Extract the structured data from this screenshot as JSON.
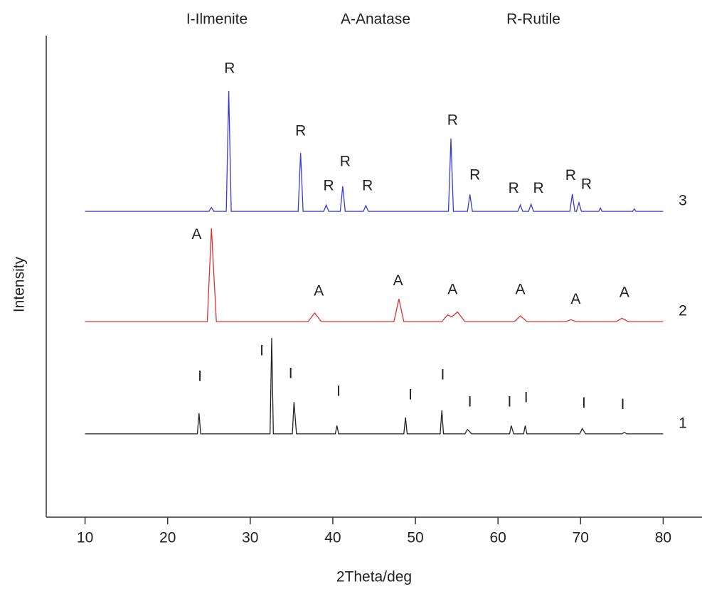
{
  "chart_data": {
    "type": "line",
    "legend_texts": [
      "I-Ilmenite",
      "A-Anatase",
      "R-Rutile"
    ],
    "xlabel": "2Theta/deg",
    "ylabel": "Intensity",
    "xlim": [
      5.3,
      84.7
    ],
    "ylim": [
      0,
      100
    ],
    "xticks": [
      10,
      20,
      30,
      40,
      50,
      60,
      70,
      80
    ],
    "series": [
      {
        "name": "3",
        "color": "#3a3ad8",
        "x": [
          10,
          25.0,
          25.3,
          25.6,
          27.1,
          27.4,
          27.7,
          35.8,
          36.1,
          36.4,
          38.9,
          39.2,
          39.5,
          40.9,
          41.2,
          41.5,
          43.7,
          44.0,
          44.3,
          54.0,
          54.3,
          54.6,
          56.3,
          56.6,
          56.9,
          62.4,
          62.7,
          63.0,
          63.7,
          64.0,
          64.3,
          68.7,
          69.0,
          69.3,
          69.5,
          69.8,
          70.1,
          72.2,
          72.4,
          72.6,
          76.3,
          76.5,
          76.7,
          80
        ],
        "values": [
          63.5,
          63.5,
          64.3,
          63.5,
          63.5,
          88.5,
          63.5,
          63.5,
          75.6,
          63.5,
          63.5,
          64.8,
          63.5,
          63.5,
          68.7,
          63.5,
          63.5,
          64.7,
          63.5,
          63.5,
          78.6,
          63.5,
          63.5,
          67.0,
          63.5,
          63.5,
          64.8,
          63.5,
          63.5,
          65.0,
          63.5,
          63.5,
          67.1,
          63.5,
          63.5,
          65.3,
          63.5,
          63.5,
          64.2,
          63.5,
          63.5,
          64.0,
          63.5,
          63.5
        ]
      },
      {
        "name": "2",
        "color": "#e03030",
        "x": [
          10,
          24.8,
          25.3,
          25.9,
          37.0,
          37.8,
          38.6,
          47.4,
          48.0,
          48.6,
          53.2,
          53.9,
          54.4,
          55.1,
          56.0,
          62.0,
          62.7,
          63.5,
          68.2,
          68.8,
          69.5,
          74.3,
          75.0,
          75.8,
          80
        ],
        "values": [
          40.6,
          40.6,
          60.0,
          40.6,
          40.6,
          42.4,
          40.6,
          40.6,
          45.3,
          40.6,
          40.6,
          42.0,
          41.6,
          42.6,
          40.6,
          40.6,
          41.8,
          40.6,
          40.6,
          41.0,
          40.6,
          40.6,
          41.3,
          40.6,
          40.6
        ]
      },
      {
        "name": "1",
        "color": "#222222",
        "x": [
          10,
          23.6,
          23.8,
          24.0,
          32.4,
          32.6,
          32.8,
          35.1,
          35.3,
          35.6,
          40.3,
          40.5,
          40.7,
          48.6,
          48.8,
          49.0,
          53.0,
          53.2,
          53.4,
          56.0,
          56.3,
          56.8,
          61.4,
          61.6,
          61.9,
          63.1,
          63.3,
          63.5,
          69.9,
          70.2,
          70.6,
          75.0,
          75.3,
          75.6,
          80
        ],
        "values": [
          17.3,
          17.3,
          21.6,
          17.3,
          17.3,
          37.2,
          17.3,
          17.3,
          23.9,
          17.3,
          17.3,
          19.0,
          17.3,
          17.3,
          20.7,
          17.3,
          17.3,
          22.2,
          17.3,
          17.3,
          18.2,
          17.3,
          17.3,
          19.0,
          17.3,
          17.3,
          19.0,
          17.3,
          17.3,
          18.4,
          17.3,
          17.3,
          17.6,
          17.3,
          17.3
        ]
      }
    ],
    "annotations": [
      {
        "text": "R",
        "x": 27.5,
        "y": 93.1
      },
      {
        "text": "R",
        "x": 36.1,
        "y": 80.1
      },
      {
        "text": "R",
        "x": 39.5,
        "y": 68.7
      },
      {
        "text": "R",
        "x": 41.5,
        "y": 73.7
      },
      {
        "text": "R",
        "x": 44.2,
        "y": 68.7
      },
      {
        "text": "R",
        "x": 54.5,
        "y": 82.3
      },
      {
        "text": "R",
        "x": 57.2,
        "y": 70.9
      },
      {
        "text": "R",
        "x": 61.9,
        "y": 68.2
      },
      {
        "text": "R",
        "x": 64.9,
        "y": 68.2
      },
      {
        "text": "R",
        "x": 68.8,
        "y": 70.8
      },
      {
        "text": "R",
        "x": 70.7,
        "y": 69.0
      },
      {
        "text": "A",
        "x": 23.5,
        "y": 58.6
      },
      {
        "text": "A",
        "x": 38.3,
        "y": 46.8
      },
      {
        "text": "A",
        "x": 47.9,
        "y": 49.0
      },
      {
        "text": "A",
        "x": 54.5,
        "y": 47.1
      },
      {
        "text": "A",
        "x": 62.7,
        "y": 47.1
      },
      {
        "text": "A",
        "x": 69.4,
        "y": 45.1
      },
      {
        "text": "A",
        "x": 75.3,
        "y": 46.5
      },
      {
        "text": "I",
        "x": 23.9,
        "y": 29.1
      },
      {
        "text": "I",
        "x": 31.4,
        "y": 34.4
      },
      {
        "text": "I",
        "x": 34.9,
        "y": 29.7
      },
      {
        "text": "I",
        "x": 40.7,
        "y": 26.0
      },
      {
        "text": "I",
        "x": 49.4,
        "y": 25.3
      },
      {
        "text": "I",
        "x": 53.3,
        "y": 29.4
      },
      {
        "text": "I",
        "x": 56.6,
        "y": 23.8
      },
      {
        "text": "I",
        "x": 61.4,
        "y": 23.8
      },
      {
        "text": "I",
        "x": 63.4,
        "y": 24.7
      },
      {
        "text": "I",
        "x": 70.4,
        "y": 23.6
      },
      {
        "text": "I",
        "x": 75.1,
        "y": 23.3
      }
    ]
  }
}
